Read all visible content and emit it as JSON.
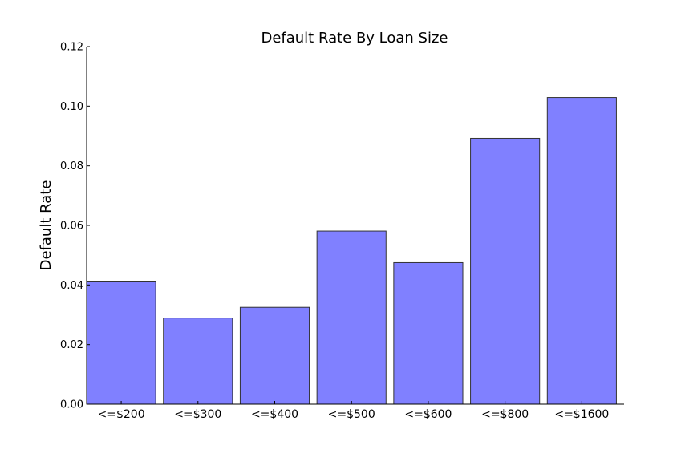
{
  "chart_data": {
    "type": "bar",
    "title": "Default Rate By Loan Size",
    "xlabel": "",
    "ylabel": "Default Rate",
    "categories": [
      "<=$200",
      "<=$300",
      "<=$400",
      "<=$500",
      "<=$600",
      "<=$800",
      "<=$1600"
    ],
    "values": [
      0.0413,
      0.0289,
      0.0325,
      0.0581,
      0.0475,
      0.0892,
      0.1029
    ],
    "ylim": [
      0,
      0.12
    ],
    "yticks": [
      0.0,
      0.02,
      0.04,
      0.06,
      0.08,
      0.1,
      0.12
    ],
    "ytick_labels": [
      "0.00",
      "0.02",
      "0.04",
      "0.06",
      "0.08",
      "0.10",
      "0.12"
    ],
    "grid": false,
    "legend": "none",
    "bar_color": "#8080ff",
    "bar_edge_color": "#333333"
  }
}
